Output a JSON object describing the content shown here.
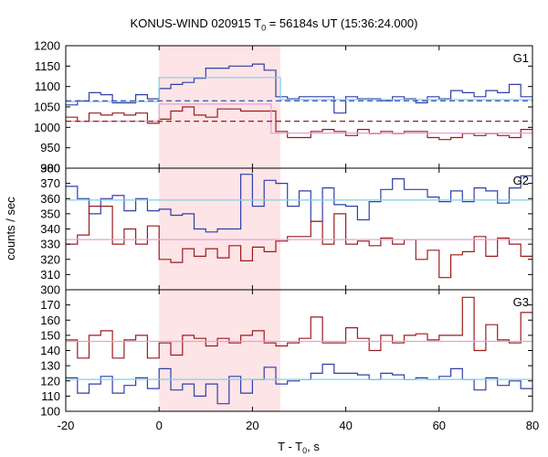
{
  "chart_data": {
    "type": "line",
    "title": "KONUS-WIND 020915 T",
    "title_sub": "0",
    "title_rest": " = 56184s UT (15:36:24.000)",
    "xlabel": "T - T",
    "xlabel_sub": "0",
    "xlabel_rest": ", s",
    "ylabel": "counts / sec",
    "xlim": [
      -20,
      80
    ],
    "x_ticks": [
      "-20",
      "0",
      "20",
      "40",
      "60",
      "80"
    ],
    "x_tick_values": [
      -20,
      0,
      20,
      40,
      60,
      80
    ],
    "highlight_interval": [
      0,
      26
    ],
    "colors": {
      "blue": "#2f3fa8",
      "red": "#9b1c1c",
      "cyan": "#7fd0ea",
      "pink": "#e6a0d8",
      "shade": "#fde4e6"
    },
    "panels": [
      {
        "label": "G1",
        "ylim": [
          900,
          1200
        ],
        "y_ticks": [
          "900",
          "950",
          "1000",
          "1050",
          "1100",
          "1150",
          "1200"
        ],
        "y_tick_values": [
          900,
          950,
          1000,
          1050,
          1100,
          1150,
          1200
        ],
        "series": [
          {
            "color": "blue",
            "kind": "step",
            "x": [
              -20,
              -17.5,
              -15,
              -12.5,
              -10,
              -7.5,
              -5,
              -2.5,
              0,
              2.5,
              5,
              7.5,
              10,
              12.5,
              15,
              17.5,
              20,
              22.5,
              25,
              27.5,
              30,
              32.5,
              35,
              37.5,
              40,
              42.5,
              45,
              47.5,
              50,
              52.5,
              55,
              57.5,
              60,
              62.5,
              65,
              67.5,
              70,
              72.5,
              75,
              77.5,
              80
            ],
            "values": [
              1055,
              1065,
              1085,
              1080,
              1060,
              1060,
              1080,
              1070,
              1095,
              1105,
              1110,
              1120,
              1145,
              1145,
              1150,
              1150,
              1155,
              1140,
              1075,
              1070,
              1075,
              1075,
              1075,
              1035,
              1075,
              1070,
              1070,
              1065,
              1075,
              1070,
              1060,
              1075,
              1070,
              1090,
              1085,
              1075,
              1090,
              1085,
              1105,
              1075,
              1075
            ]
          },
          {
            "color": "red",
            "kind": "step",
            "x": [
              -20,
              -17.5,
              -15,
              -12.5,
              -10,
              -7.5,
              -5,
              -2.5,
              0,
              2.5,
              5,
              7.5,
              10,
              12.5,
              15,
              17.5,
              20,
              22.5,
              25,
              27.5,
              30,
              32.5,
              35,
              37.5,
              40,
              42.5,
              45,
              47.5,
              50,
              52.5,
              55,
              57.5,
              60,
              62.5,
              65,
              67.5,
              70,
              72.5,
              75,
              77.5,
              80
            ],
            "values": [
              1025,
              1015,
              1035,
              1030,
              1035,
              1030,
              1035,
              1010,
              1020,
              1040,
              1050,
              1030,
              1025,
              1045,
              1045,
              1040,
              1040,
              1040,
              990,
              975,
              975,
              990,
              995,
              990,
              980,
              995,
              985,
              990,
              985,
              990,
              990,
              975,
              970,
              975,
              985,
              980,
              985,
              980,
              975,
              995,
              995
            ]
          },
          {
            "color": "cyan",
            "kind": "segments",
            "segments": [
              [
                -20,
                0,
                1063
              ],
              [
                0,
                26,
                1122
              ],
              [
                26,
                80,
                1068
              ]
            ]
          },
          {
            "color": "pink",
            "kind": "segments",
            "segments": [
              [
                -20,
                0,
                1015
              ],
              [
                0,
                24,
                1057
              ],
              [
                24,
                80,
                986
              ]
            ]
          },
          {
            "color": "blue",
            "kind": "dashed",
            "y": 1065
          },
          {
            "color": "red",
            "kind": "dashed",
            "y": 1015
          }
        ]
      },
      {
        "label": "G2",
        "ylim": [
          300,
          380
        ],
        "y_ticks": [
          "300",
          "310",
          "320",
          "330",
          "340",
          "350",
          "360",
          "370",
          "380"
        ],
        "y_tick_values": [
          300,
          310,
          320,
          330,
          340,
          350,
          360,
          370,
          380
        ],
        "series": [
          {
            "color": "blue",
            "kind": "step",
            "x": [
              -20,
              -17.5,
              -15,
              -12.5,
              -10,
              -7.5,
              -5,
              -2.5,
              0,
              2.5,
              5,
              7.5,
              10,
              12.5,
              15,
              17.5,
              20,
              22.5,
              25,
              27.5,
              30,
              32.5,
              35,
              37.5,
              40,
              42.5,
              45,
              47.5,
              50,
              52.5,
              55,
              57.5,
              60,
              62.5,
              65,
              67.5,
              70,
              72.5,
              75,
              77.5,
              80
            ],
            "values": [
              368,
              360,
              350,
              360,
              362,
              352,
              360,
              352,
              353,
              349,
              350,
              340,
              338,
              340,
              340,
              376,
              355,
              372,
              370,
              355,
              365,
              345,
              367,
              356,
              355,
              346,
              358,
              366,
              373,
              366,
              366,
              361,
              358,
              365,
              358,
              367,
              365,
              357,
              367,
              375,
              375
            ]
          },
          {
            "color": "red",
            "kind": "step",
            "x": [
              -20,
              -17.5,
              -15,
              -12.5,
              -10,
              -7.5,
              -5,
              -2.5,
              0,
              2.5,
              5,
              7.5,
              10,
              12.5,
              15,
              17.5,
              20,
              22.5,
              25,
              27.5,
              30,
              32.5,
              35,
              37.5,
              40,
              42.5,
              45,
              47.5,
              50,
              52.5,
              55,
              57.5,
              60,
              62.5,
              65,
              67.5,
              70,
              72.5,
              75,
              77.5,
              80
            ],
            "values": [
              330,
              336,
              355,
              355,
              330,
              340,
              330,
              342,
              320,
              318,
              327,
              322,
              327,
              321,
              329,
              319,
              328,
              325,
              332,
              335,
              335,
              345,
              330,
              350,
              330,
              332,
              329,
              334,
              330,
              333,
              320,
              326,
              308,
              323,
              325,
              335,
              322,
              334,
              330,
              322,
              322
            ]
          },
          {
            "color": "cyan",
            "kind": "segments",
            "segments": [
              [
                -20,
                80,
                359
              ]
            ]
          },
          {
            "color": "pink",
            "kind": "segments",
            "segments": [
              [
                -20,
                80,
                333
              ]
            ]
          }
        ]
      },
      {
        "label": "G3",
        "ylim": [
          100,
          180
        ],
        "y_ticks": [
          "100",
          "110",
          "120",
          "130",
          "140",
          "150",
          "160",
          "170"
        ],
        "y_tick_values": [
          100,
          110,
          120,
          130,
          140,
          150,
          160,
          170
        ],
        "series": [
          {
            "color": "red",
            "kind": "step",
            "x": [
              -20,
              -17.5,
              -15,
              -12.5,
              -10,
              -7.5,
              -5,
              -2.5,
              0,
              2.5,
              5,
              7.5,
              10,
              12.5,
              15,
              17.5,
              20,
              22.5,
              25,
              27.5,
              30,
              32.5,
              35,
              37.5,
              40,
              42.5,
              45,
              47.5,
              50,
              52.5,
              55,
              57.5,
              60,
              62.5,
              65,
              67.5,
              70,
              72.5,
              75,
              77.5,
              80
            ],
            "values": [
              147,
              135,
              150,
              153,
              135,
              147,
              150,
              135,
              145,
              137,
              150,
              148,
              143,
              148,
              145,
              150,
              153,
              145,
              143,
              145,
              148,
              162,
              145,
              145,
              155,
              148,
              140,
              150,
              145,
              150,
              151,
              147,
              150,
              150,
              175,
              140,
              157,
              147,
              145,
              165,
              165
            ]
          },
          {
            "color": "blue",
            "kind": "step",
            "x": [
              -20,
              -17.5,
              -15,
              -12.5,
              -10,
              -7.5,
              -5,
              -2.5,
              0,
              2.5,
              5,
              7.5,
              10,
              12.5,
              15,
              17.5,
              20,
              22.5,
              25,
              27.5,
              30,
              32.5,
              35,
              37.5,
              40,
              42.5,
              45,
              47.5,
              50,
              52.5,
              55,
              57.5,
              60,
              62.5,
              65,
              67.5,
              70,
              72.5,
              75,
              77.5,
              80
            ],
            "values": [
              122,
              112,
              118,
              123,
              112,
              117,
              122,
              115,
              128,
              114,
              118,
              110,
              118,
              105,
              123,
              112,
              121,
              129,
              118,
              120,
              121,
              125,
              131,
              125,
              125,
              124,
              121,
              125,
              124,
              121,
              122,
              121,
              123,
              128,
              121,
              114,
              122,
              117,
              120,
              115,
              115
            ]
          },
          {
            "color": "cyan",
            "kind": "segments",
            "segments": [
              [
                -20,
                80,
                121
              ]
            ]
          },
          {
            "color": "pink",
            "kind": "segments",
            "segments": [
              [
                -20,
                80,
                146
              ]
            ]
          }
        ]
      }
    ]
  }
}
